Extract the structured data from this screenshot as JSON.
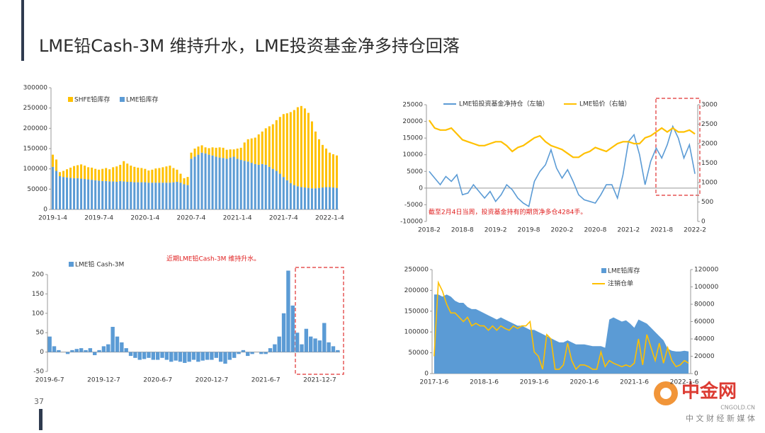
{
  "slide": {
    "title": "LME铅Cash-3M 维持升水，LME投资基金净多持仓回落",
    "page_number": "37"
  },
  "watermark": {
    "brand": "中金网",
    "site": "CNGOLD.CN",
    "slogan": "中 文 财 经 新 媒 体"
  },
  "chart_data": [
    {
      "type": "bar",
      "stacked": true,
      "categories": [
        "2019-1-4",
        null,
        null,
        null,
        null,
        null,
        null,
        null,
        null,
        null,
        null,
        null,
        null,
        "2019-7-4",
        null,
        null,
        null,
        null,
        null,
        null,
        null,
        null,
        null,
        null,
        null,
        null,
        "2020-1-4",
        null,
        null,
        null,
        null,
        null,
        null,
        null,
        null,
        null,
        null,
        null,
        null,
        "2020-7-4",
        null,
        null,
        null,
        null,
        null,
        null,
        null,
        null,
        null,
        null,
        null,
        null,
        "2021-1-4",
        null,
        null,
        null,
        null,
        null,
        null,
        null,
        null,
        null,
        null,
        null,
        null,
        "2021-7-4",
        null,
        null,
        null,
        null,
        null,
        null,
        null,
        null,
        null,
        null,
        null,
        null,
        "2022-1-4",
        null,
        null
      ],
      "series": [
        {
          "name": "LME铅库存",
          "color": "#5b9bd5",
          "values": [
            105000,
            95000,
            82000,
            80000,
            79000,
            78000,
            77000,
            77000,
            76000,
            75000,
            74000,
            73000,
            72000,
            71000,
            70000,
            70000,
            69000,
            69000,
            68000,
            70000,
            69000,
            68000,
            68000,
            67000,
            67000,
            67000,
            67000,
            66000,
            66000,
            66000,
            66000,
            66000,
            66000,
            66000,
            67000,
            68000,
            66000,
            62000,
            60000,
            125000,
            130000,
            135000,
            140000,
            138000,
            135000,
            133000,
            130000,
            128000,
            127000,
            125000,
            128000,
            130000,
            125000,
            122000,
            120000,
            118000,
            115000,
            112000,
            110000,
            112000,
            110000,
            105000,
            100000,
            95000,
            88000,
            80000,
            72000,
            65000,
            60000,
            57000,
            55000,
            54000,
            53000,
            52000,
            52000,
            53000,
            54000,
            55000,
            55000,
            54000,
            53000
          ]
        },
        {
          "name": "SHFE铅库存",
          "color": "#ffc000",
          "values": [
            30000,
            28000,
            10000,
            15000,
            20000,
            25000,
            30000,
            32000,
            35000,
            33000,
            30000,
            30000,
            28000,
            27000,
            30000,
            32000,
            30000,
            35000,
            38000,
            40000,
            50000,
            45000,
            40000,
            38000,
            36000,
            35000,
            33000,
            30000,
            32000,
            35000,
            36000,
            38000,
            40000,
            42000,
            35000,
            30000,
            22000,
            15000,
            20000,
            15000,
            20000,
            20000,
            18000,
            15000,
            16000,
            20000,
            22000,
            25000,
            25000,
            22000,
            20000,
            18000,
            25000,
            30000,
            45000,
            55000,
            60000,
            65000,
            75000,
            80000,
            90000,
            100000,
            110000,
            125000,
            140000,
            155000,
            165000,
            175000,
            185000,
            195000,
            200000,
            195000,
            185000,
            165000,
            140000,
            120000,
            105000,
            95000,
            85000,
            82000,
            80000
          ]
        }
      ],
      "ylim": [
        0,
        300000
      ],
      "yticks": [
        0,
        50000,
        100000,
        150000,
        200000,
        250000,
        300000
      ]
    },
    {
      "type": "line",
      "categories": [
        "2018-2",
        null,
        null,
        null,
        null,
        null,
        "2018-8",
        null,
        null,
        null,
        null,
        null,
        "2019-2",
        null,
        null,
        null,
        null,
        null,
        "2019-8",
        null,
        null,
        null,
        null,
        null,
        "2020-2",
        null,
        null,
        null,
        null,
        null,
        "2020-8",
        null,
        null,
        null,
        null,
        null,
        "2021-2",
        null,
        null,
        null,
        null,
        null,
        "2021-8",
        null,
        null,
        null,
        null,
        null,
        "2022-2"
      ],
      "series": [
        {
          "name": "LME铅投资基金净持仓（左轴）",
          "color": "#5b9bd5",
          "values": [
            5000,
            3000,
            1000,
            3500,
            2000,
            4000,
            -2000,
            -1500,
            1000,
            -1000,
            -3000,
            -1000,
            -4000,
            -2000,
            1000,
            -500,
            -3000,
            -4500,
            -5500,
            2000,
            5000,
            7000,
            11500,
            6000,
            3000,
            5500,
            2000,
            -2000,
            -3500,
            -4000,
            -4500,
            -2000,
            1000,
            1000,
            -3000,
            4000,
            14000,
            16000,
            10000,
            1000,
            8000,
            12000,
            9000,
            13000,
            18500,
            15000,
            9000,
            13000,
            4284
          ]
        },
        {
          "name": "LME铅价（右轴）",
          "color": "#ffc000",
          "axis": "y2",
          "values": [
            2600,
            2400,
            2350,
            2350,
            2400,
            2250,
            2100,
            2050,
            2000,
            1950,
            1950,
            2000,
            2050,
            2050,
            1950,
            1800,
            1900,
            1950,
            2050,
            2150,
            2200,
            2050,
            1950,
            1900,
            1850,
            1750,
            1650,
            1650,
            1750,
            1800,
            1900,
            1850,
            1800,
            1900,
            2000,
            2050,
            2050,
            2000,
            2000,
            2150,
            2200,
            2300,
            2400,
            2300,
            2400,
            2300,
            2300,
            2350,
            2250
          ]
        }
      ],
      "ylim": [
        -10000,
        25000
      ],
      "yticks": [
        -10000,
        -5000,
        0,
        5000,
        10000,
        15000,
        20000,
        25000
      ],
      "y2lim": [
        0,
        3000
      ],
      "y2ticks": [
        0,
        500,
        1000,
        1500,
        2000,
        2500,
        3000
      ],
      "annotation": "截至2月4日当周，投资基金持有的期货净多仓4284手。"
    },
    {
      "type": "bar",
      "categories": [
        "2019-6-7",
        null,
        null,
        null,
        null,
        null,
        null,
        null,
        null,
        null,
        null,
        null,
        "2019-12-7",
        null,
        null,
        null,
        null,
        null,
        null,
        null,
        null,
        null,
        null,
        null,
        "2020-6-7",
        null,
        null,
        null,
        null,
        null,
        null,
        null,
        null,
        null,
        null,
        null,
        "2020-12-7",
        null,
        null,
        null,
        null,
        null,
        null,
        null,
        null,
        null,
        null,
        null,
        "2021-6-7",
        null,
        null,
        null,
        null,
        null,
        null,
        null,
        null,
        null,
        null,
        null,
        "2021-12-7",
        null,
        null,
        null,
        null
      ],
      "series": [
        {
          "name": "LME铅 Cash-3M",
          "color": "#5b9bd5",
          "values": [
            40,
            15,
            5,
            0,
            -5,
            5,
            8,
            10,
            5,
            10,
            -8,
            5,
            15,
            20,
            65,
            40,
            25,
            10,
            -10,
            -15,
            -20,
            -18,
            -15,
            -20,
            -20,
            -15,
            -20,
            -25,
            -22,
            -25,
            -28,
            -25,
            -20,
            -25,
            -22,
            -20,
            -20,
            -15,
            -25,
            -30,
            -20,
            -15,
            -5,
            5,
            -10,
            -5,
            0,
            -5,
            -5,
            10,
            20,
            40,
            100,
            210,
            120,
            50,
            20,
            60,
            40,
            35,
            30,
            75,
            25,
            15,
            5
          ]
        }
      ],
      "ylim": [
        -50,
        200
      ],
      "yticks": [
        -50,
        0,
        50,
        100,
        150,
        200
      ],
      "annotation": "近期LME铅Cash-3M 维持升水。"
    },
    {
      "type": "combo",
      "categories": [
        "2017-1-6",
        null,
        null,
        null,
        null,
        null,
        null,
        null,
        null,
        null,
        null,
        null,
        "2018-1-6",
        null,
        null,
        null,
        null,
        null,
        null,
        null,
        null,
        null,
        null,
        null,
        "2019-1-6",
        null,
        null,
        null,
        null,
        null,
        null,
        null,
        null,
        null,
        null,
        null,
        "2020-1-6",
        null,
        null,
        null,
        null,
        null,
        null,
        null,
        null,
        null,
        null,
        null,
        "2021-1-6",
        null,
        null,
        null,
        null,
        null,
        null,
        null,
        null,
        null,
        null,
        null,
        "2022-1-6",
        null
      ],
      "series": [
        {
          "name": "LME铅库存",
          "color": "#5b9bd5",
          "kind": "area",
          "values": [
            190000,
            190000,
            185000,
            190000,
            185000,
            175000,
            170000,
            170000,
            160000,
            155000,
            155000,
            150000,
            145000,
            140000,
            135000,
            130000,
            135000,
            130000,
            125000,
            120000,
            115000,
            115000,
            110000,
            105000,
            105000,
            100000,
            95000,
            90000,
            85000,
            80000,
            75000,
            75000,
            80000,
            75000,
            70000,
            70000,
            70000,
            68000,
            66000,
            66000,
            66000,
            62000,
            130000,
            135000,
            130000,
            125000,
            128000,
            120000,
            110000,
            130000,
            125000,
            120000,
            110000,
            100000,
            90000,
            80000,
            60000,
            55000,
            53000,
            53000,
            55000,
            53000
          ]
        },
        {
          "name": "注销仓单",
          "color": "#ffc000",
          "kind": "line",
          "axis": "y2",
          "values": [
            20000,
            105000,
            95000,
            80000,
            70000,
            70000,
            65000,
            60000,
            65000,
            55000,
            58000,
            55000,
            55000,
            50000,
            55000,
            50000,
            55000,
            52000,
            50000,
            55000,
            52000,
            55000,
            55000,
            60000,
            25000,
            20000,
            5000,
            45000,
            40000,
            5000,
            5000,
            10000,
            35000,
            15000,
            5000,
            10000,
            10000,
            8000,
            5000,
            5000,
            25000,
            8000,
            15000,
            12000,
            10000,
            8000,
            10000,
            8000,
            12000,
            40000,
            10000,
            45000,
            30000,
            15000,
            35000,
            12000,
            30000,
            15000,
            8000,
            10000,
            15000,
            12000
          ]
        }
      ],
      "ylim": [
        0,
        250000
      ],
      "yticks": [
        0,
        50000,
        100000,
        150000,
        200000,
        250000
      ],
      "y2lim": [
        0,
        120000
      ],
      "y2ticks": [
        0,
        20000,
        40000,
        60000,
        80000,
        100000,
        120000
      ]
    }
  ]
}
